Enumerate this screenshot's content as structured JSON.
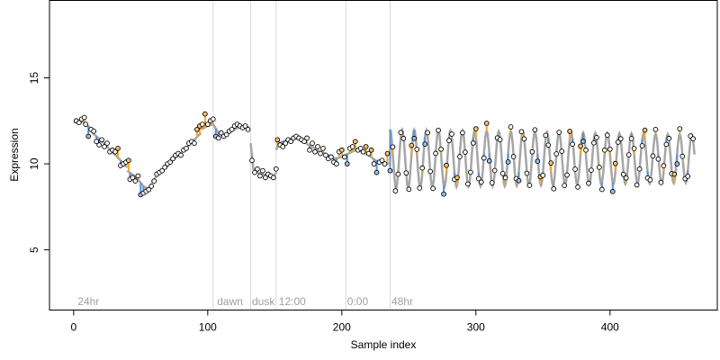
{
  "chart_data": {
    "type": "scatter",
    "xlabel": "Sample index",
    "ylabel": "Expression",
    "xlim": [
      -18,
      480
    ],
    "ylim": [
      1.5,
      19.5
    ],
    "x_ticks": [
      0,
      100,
      200,
      300,
      400
    ],
    "y_ticks": [
      5,
      10,
      15
    ],
    "grid": false,
    "legend": "none",
    "vlines": [
      104,
      132,
      151,
      203,
      236
    ],
    "annotations": [
      {
        "x": 3,
        "text": "24hr"
      },
      {
        "x": 107,
        "text": "dawn"
      },
      {
        "x": 133,
        "text": "dusk"
      },
      {
        "x": 153,
        "text": "12:00"
      },
      {
        "x": 204,
        "text": "0:00"
      },
      {
        "x": 237,
        "text": "48hr"
      }
    ],
    "annotation_y": 2,
    "colors": {
      "fit_line": "#a6a6a6",
      "above_fit": "#f5a623",
      "below_fit": "#5b8fd9",
      "point_edge": "#000000",
      "vline": "#d9d9d9",
      "annotation": "#a0a0a0"
    },
    "segments": [
      {
        "x": [
          0,
          4,
          8,
          12
        ],
        "y": [
          12.4,
          12.5,
          12.4,
          12.1
        ]
      },
      {
        "x": [
          14,
          20,
          25,
          30,
          35,
          40
        ],
        "y": [
          11.8,
          11.4,
          11.0,
          10.6,
          10.2,
          9.8
        ]
      },
      {
        "x": [
          40,
          45,
          48,
          50,
          52,
          54,
          56,
          58
        ],
        "y": [
          9.6,
          9.3,
          9.1,
          8.9,
          8.7,
          8.6,
          8.6,
          8.7
        ]
      },
      {
        "x": [
          58,
          62,
          66,
          70,
          75,
          80,
          85,
          90,
          95
        ],
        "y": [
          8.9,
          9.3,
          9.6,
          9.9,
          10.3,
          10.6,
          11.0,
          11.4,
          11.8
        ]
      },
      {
        "x": [
          95,
          100,
          104,
          108,
          112,
          116,
          120,
          125,
          128,
          131
        ],
        "y": [
          12.0,
          12.2,
          12.3,
          11.8,
          11.6,
          11.8,
          12.0,
          12.2,
          12.2,
          12.1
        ]
      },
      {
        "x": [
          132,
          134,
          137,
          141,
          145,
          149,
          151
        ],
        "y": [
          11.2,
          9.7,
          9.5,
          9.4,
          9.3,
          9.2,
          9.5
        ]
      },
      {
        "x": [
          151,
          153,
          156,
          160,
          165,
          170,
          175,
          180
        ],
        "y": [
          10.8,
          11.2,
          11.3,
          11.4,
          11.5,
          11.4,
          11.1,
          10.9
        ]
      },
      {
        "x": [
          180,
          185,
          190,
          195,
          200,
          205,
          210,
          215,
          220,
          225,
          230,
          235
        ],
        "y": [
          10.8,
          10.7,
          10.5,
          10.3,
          10.4,
          10.6,
          10.8,
          10.7,
          10.5,
          10.2,
          10.1,
          10.0
        ]
      }
    ],
    "wave": {
      "x_start": 236,
      "x_end": 463,
      "mean": 10.3,
      "amplitude_start": 1.7,
      "amplitude_end": 1.4,
      "period": 9.0
    },
    "points": [
      {
        "x": 2,
        "y": 12.5
      },
      {
        "x": 4,
        "y": 12.4
      },
      {
        "x": 6,
        "y": 12.6
      },
      {
        "x": 8,
        "y": 12.7
      },
      {
        "x": 9,
        "y": 12.3
      },
      {
        "x": 11,
        "y": 11.6
      },
      {
        "x": 13,
        "y": 12.0
      },
      {
        "x": 15,
        "y": 11.9
      },
      {
        "x": 17,
        "y": 11.3
      },
      {
        "x": 19,
        "y": 11.1
      },
      {
        "x": 21,
        "y": 11.4
      },
      {
        "x": 23,
        "y": 11.0
      },
      {
        "x": 25,
        "y": 11.2
      },
      {
        "x": 27,
        "y": 10.7
      },
      {
        "x": 29,
        "y": 10.8
      },
      {
        "x": 31,
        "y": 10.7
      },
      {
        "x": 33,
        "y": 10.9
      },
      {
        "x": 35,
        "y": 9.9
      },
      {
        "x": 37,
        "y": 10.0
      },
      {
        "x": 39,
        "y": 10.1
      },
      {
        "x": 41,
        "y": 10.2
      },
      {
        "x": 42,
        "y": 9.1
      },
      {
        "x": 44,
        "y": 9.2
      },
      {
        "x": 46,
        "y": 9.0
      },
      {
        "x": 48,
        "y": 9.3
      },
      {
        "x": 50,
        "y": 8.2
      },
      {
        "x": 52,
        "y": 8.3
      },
      {
        "x": 54,
        "y": 8.4
      },
      {
        "x": 56,
        "y": 8.5
      },
      {
        "x": 58,
        "y": 8.7
      },
      {
        "x": 60,
        "y": 9.0
      },
      {
        "x": 62,
        "y": 9.4
      },
      {
        "x": 64,
        "y": 9.5
      },
      {
        "x": 66,
        "y": 9.6
      },
      {
        "x": 68,
        "y": 9.8
      },
      {
        "x": 70,
        "y": 10.0
      },
      {
        "x": 72,
        "y": 10.1
      },
      {
        "x": 74,
        "y": 10.3
      },
      {
        "x": 76,
        "y": 10.5
      },
      {
        "x": 78,
        "y": 10.6
      },
      {
        "x": 80,
        "y": 10.5
      },
      {
        "x": 82,
        "y": 10.8
      },
      {
        "x": 84,
        "y": 10.9
      },
      {
        "x": 86,
        "y": 11.2
      },
      {
        "x": 88,
        "y": 11.3
      },
      {
        "x": 90,
        "y": 11.2
      },
      {
        "x": 92,
        "y": 12.0
      },
      {
        "x": 94,
        "y": 12.2
      },
      {
        "x": 96,
        "y": 12.3
      },
      {
        "x": 98,
        "y": 12.9
      },
      {
        "x": 100,
        "y": 12.3
      },
      {
        "x": 102,
        "y": 12.5
      },
      {
        "x": 104,
        "y": 12.6
      },
      {
        "x": 106,
        "y": 11.6
      },
      {
        "x": 108,
        "y": 11.5
      },
      {
        "x": 110,
        "y": 11.8
      },
      {
        "x": 112,
        "y": 11.6
      },
      {
        "x": 114,
        "y": 11.7
      },
      {
        "x": 116,
        "y": 11.9
      },
      {
        "x": 118,
        "y": 12.0
      },
      {
        "x": 120,
        "y": 12.2
      },
      {
        "x": 122,
        "y": 12.3
      },
      {
        "x": 124,
        "y": 12.2
      },
      {
        "x": 126,
        "y": 12.1
      },
      {
        "x": 128,
        "y": 12.2
      },
      {
        "x": 130,
        "y": 12.0
      },
      {
        "x": 133,
        "y": 10.2
      },
      {
        "x": 135,
        "y": 9.5
      },
      {
        "x": 137,
        "y": 9.7
      },
      {
        "x": 139,
        "y": 9.3
      },
      {
        "x": 141,
        "y": 9.6
      },
      {
        "x": 143,
        "y": 9.2
      },
      {
        "x": 145,
        "y": 9.4
      },
      {
        "x": 147,
        "y": 9.3
      },
      {
        "x": 149,
        "y": 9.2
      },
      {
        "x": 151,
        "y": 9.7
      },
      {
        "x": 152,
        "y": 11.4
      },
      {
        "x": 154,
        "y": 11.1
      },
      {
        "x": 156,
        "y": 11.0
      },
      {
        "x": 158,
        "y": 11.2
      },
      {
        "x": 160,
        "y": 11.4
      },
      {
        "x": 162,
        "y": 11.3
      },
      {
        "x": 164,
        "y": 11.5
      },
      {
        "x": 166,
        "y": 11.6
      },
      {
        "x": 168,
        "y": 11.5
      },
      {
        "x": 170,
        "y": 11.4
      },
      {
        "x": 172,
        "y": 11.3
      },
      {
        "x": 174,
        "y": 11.5
      },
      {
        "x": 176,
        "y": 10.8
      },
      {
        "x": 178,
        "y": 11.2
      },
      {
        "x": 180,
        "y": 10.7
      },
      {
        "x": 182,
        "y": 11.0
      },
      {
        "x": 184,
        "y": 10.6
      },
      {
        "x": 186,
        "y": 10.9
      },
      {
        "x": 188,
        "y": 10.5
      },
      {
        "x": 190,
        "y": 10.3
      },
      {
        "x": 192,
        "y": 10.4
      },
      {
        "x": 194,
        "y": 10.1
      },
      {
        "x": 196,
        "y": 10.0
      },
      {
        "x": 198,
        "y": 10.7
      },
      {
        "x": 200,
        "y": 10.8
      },
      {
        "x": 202,
        "y": 10.4
      },
      {
        "x": 204,
        "y": 10.0
      },
      {
        "x": 206,
        "y": 10.9
      },
      {
        "x": 208,
        "y": 11.0
      },
      {
        "x": 210,
        "y": 11.3
      },
      {
        "x": 212,
        "y": 10.8
      },
      {
        "x": 214,
        "y": 10.9
      },
      {
        "x": 216,
        "y": 10.7
      },
      {
        "x": 218,
        "y": 11.0
      },
      {
        "x": 220,
        "y": 10.6
      },
      {
        "x": 222,
        "y": 10.8
      },
      {
        "x": 224,
        "y": 10.0
      },
      {
        "x": 226,
        "y": 9.5
      },
      {
        "x": 228,
        "y": 10.1
      },
      {
        "x": 230,
        "y": 10.2
      },
      {
        "x": 232,
        "y": 10.0
      },
      {
        "x": 234,
        "y": 10.6
      },
      {
        "x": 236,
        "y": 9.6
      }
    ]
  }
}
